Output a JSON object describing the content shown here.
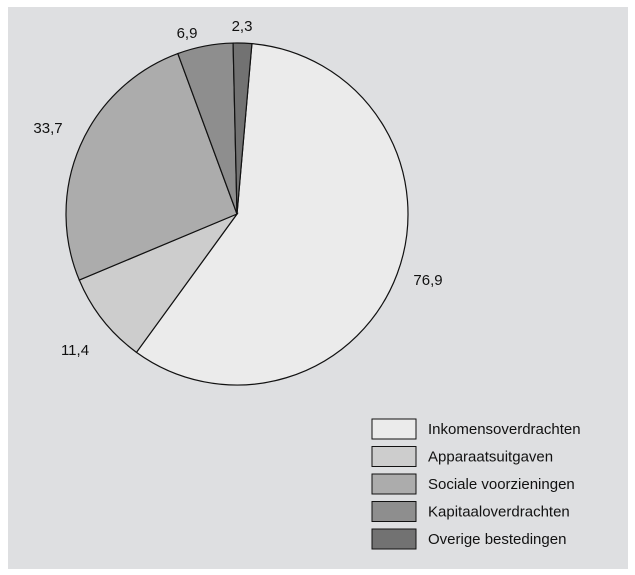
{
  "chart_data": {
    "type": "pie",
    "title": "",
    "slices": [
      {
        "label": "Inkomensoverdrachten",
        "value": 76.9,
        "value_label": "76,9",
        "color": "#ebebeb"
      },
      {
        "label": "Apparaatsuitgaven",
        "value": 11.4,
        "value_label": "11,4",
        "color": "#cdcdcd"
      },
      {
        "label": "Sociale voorzieningen",
        "value": 33.7,
        "value_label": "33,7",
        "color": "#acacac"
      },
      {
        "label": "Kapitaaloverdrachten",
        "value": 6.9,
        "value_label": "6,9",
        "color": "#8e8e8e"
      },
      {
        "label": "Overige bestedingen",
        "value": 2.3,
        "value_label": "2,3",
        "color": "#727272"
      }
    ],
    "start_angle_deg": 5,
    "direction": "clockwise",
    "legend_position": "bottom-right",
    "background_color": "#dedfe1"
  }
}
